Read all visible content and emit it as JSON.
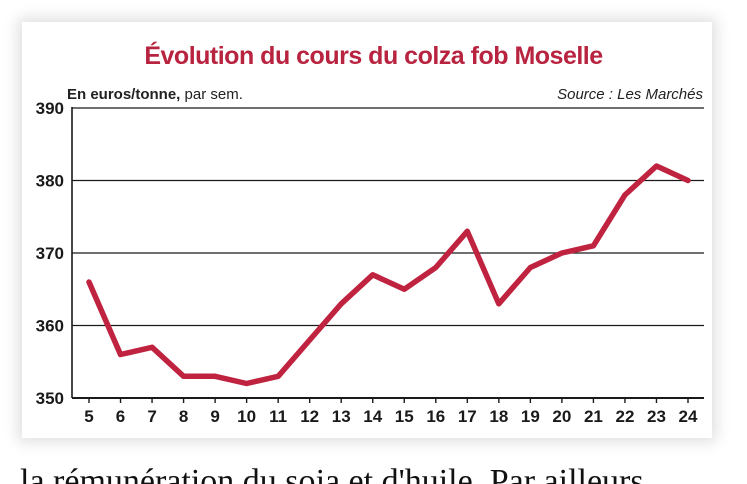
{
  "chart_data": {
    "type": "line",
    "title": "Évolution du cours du colza fob Moselle",
    "ylabel_bold": "En euros/tonne,",
    "ylabel_rest": " par sem.",
    "source": "Source : Les Marchés",
    "x": [
      5,
      6,
      7,
      8,
      9,
      10,
      11,
      12,
      13,
      14,
      15,
      16,
      17,
      18,
      19,
      20,
      21,
      22,
      23,
      24
    ],
    "series": [
      {
        "values": [
          366,
          356,
          357,
          353,
          353,
          352,
          353,
          358,
          363,
          367,
          365,
          368,
          373,
          363,
          368,
          370,
          371,
          378,
          382,
          380
        ]
      }
    ],
    "ylim": [
      350,
      390
    ],
    "yticks": [
      350,
      360,
      370,
      380,
      390
    ],
    "grid": "horizontal",
    "line_color": "#c0233f"
  },
  "bottom_text": "la rémunération du soja et d'huile. Par ailleurs"
}
